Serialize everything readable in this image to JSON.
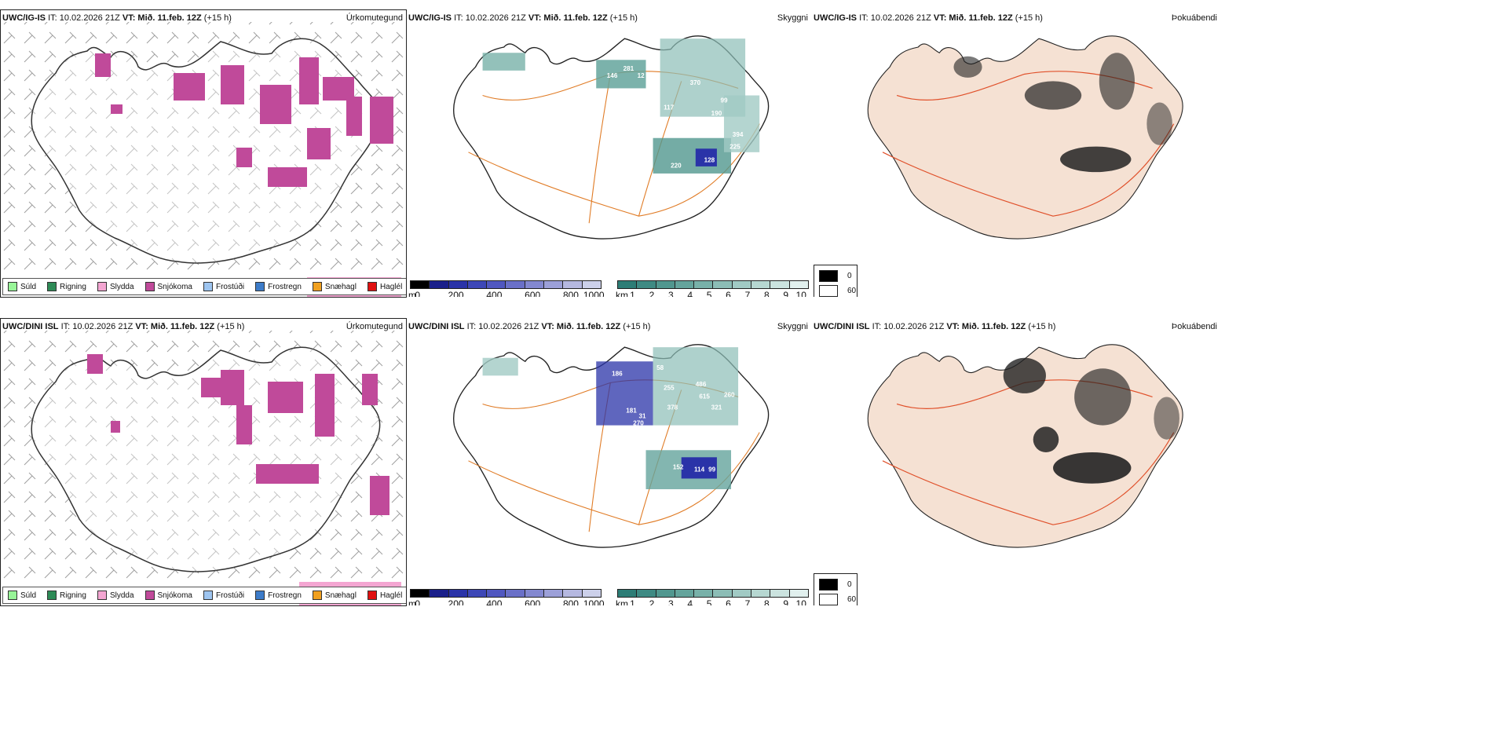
{
  "rows": [
    {
      "panels": [
        {
          "model": "UWC/IG-IS",
          "it": "IT: 10.02.2026 21Z",
          "vt_label": "VT:",
          "vt": "Mið. 11.feb. 12Z",
          "lead": "(+15 h)",
          "label": "Úrkomutegund"
        },
        {
          "model": "UWC/IG-IS",
          "it": "IT: 10.02.2026 21Z",
          "vt_label": "VT:",
          "vt": "Mið. 11.feb. 12Z",
          "lead": "(+15 h)",
          "label": "Skyggni"
        },
        {
          "model": "UWC/IG-IS",
          "it": "IT: 10.02.2026 21Z",
          "vt_label": "VT:",
          "vt": "Mið. 11.feb. 12Z",
          "lead": "(+15 h)",
          "label": "Þokuábendi"
        }
      ],
      "visibility_labels": [
        "146",
        "281",
        "12",
        "370",
        "117",
        "198",
        "99",
        "190",
        "30",
        "42",
        "220",
        "128",
        "377",
        "394",
        "225"
      ]
    },
    {
      "panels": [
        {
          "model": "UWC/DINI ISL",
          "it": "IT: 10.02.2026 21Z",
          "vt_label": "VT:",
          "vt": "Mið. 11.feb. 12Z",
          "lead": "(+15 h)",
          "label": "Úrkomutegund"
        },
        {
          "model": "UWC/DINI ISL",
          "it": "IT: 10.02.2026 21Z",
          "vt_label": "VT:",
          "vt": "Mið. 11.feb. 12Z",
          "lead": "(+15 h)",
          "label": "Skyggni"
        },
        {
          "model": "UWC/DINI ISL",
          "it": "IT: 10.02.2026 21Z",
          "vt_label": "VT:",
          "vt": "Mið. 11.feb. 12Z",
          "lead": "(+15 h)",
          "label": "Þokuábendi"
        }
      ],
      "visibility_labels": [
        "186",
        "58",
        "255",
        "486",
        "615",
        "260",
        "321",
        "378",
        "31",
        "181",
        "270",
        "76",
        "152",
        "114",
        "99"
      ]
    }
  ],
  "precip_legend": [
    {
      "label": "Súld",
      "color": "#98f598"
    },
    {
      "label": "Rigning",
      "color": "#2e8b57"
    },
    {
      "label": "Slydda",
      "color": "#f4a6d2"
    },
    {
      "label": "Snjókoma",
      "color": "#c04a9a"
    },
    {
      "label": "Frostúði",
      "color": "#9ec5f0"
    },
    {
      "label": "Frostregn",
      "color": "#3d7cc9"
    },
    {
      "label": "Snæhagl",
      "color": "#f0a020"
    },
    {
      "label": "Haglél",
      "color": "#e01010"
    }
  ],
  "height_bar": {
    "unit": "m",
    "ticks": [
      "0",
      "200",
      "400",
      "600",
      "800",
      "1000"
    ],
    "colors": [
      "#000000",
      "#1a1f8a",
      "#2a33a8",
      "#3d47b7",
      "#5057c0",
      "#6a70c8",
      "#8388d0",
      "#9ca0d8",
      "#b5b8e0",
      "#ccd0ea"
    ]
  },
  "visibility_bar": {
    "unit": "km",
    "ticks": [
      "1",
      "2",
      "3",
      "4",
      "5",
      "6",
      "7",
      "8",
      "9",
      "10"
    ],
    "colors": [
      "#2d7d76",
      "#3e8a83",
      "#51978f",
      "#64a49c",
      "#78b1a9",
      "#8cbdb6",
      "#a1cac4",
      "#b6d7d1",
      "#cbe3df",
      "#e1f0ee"
    ]
  },
  "fog_legend": [
    {
      "label": "0",
      "color": "#000000"
    },
    {
      "label": "60",
      "color": "#ffffff"
    }
  ]
}
